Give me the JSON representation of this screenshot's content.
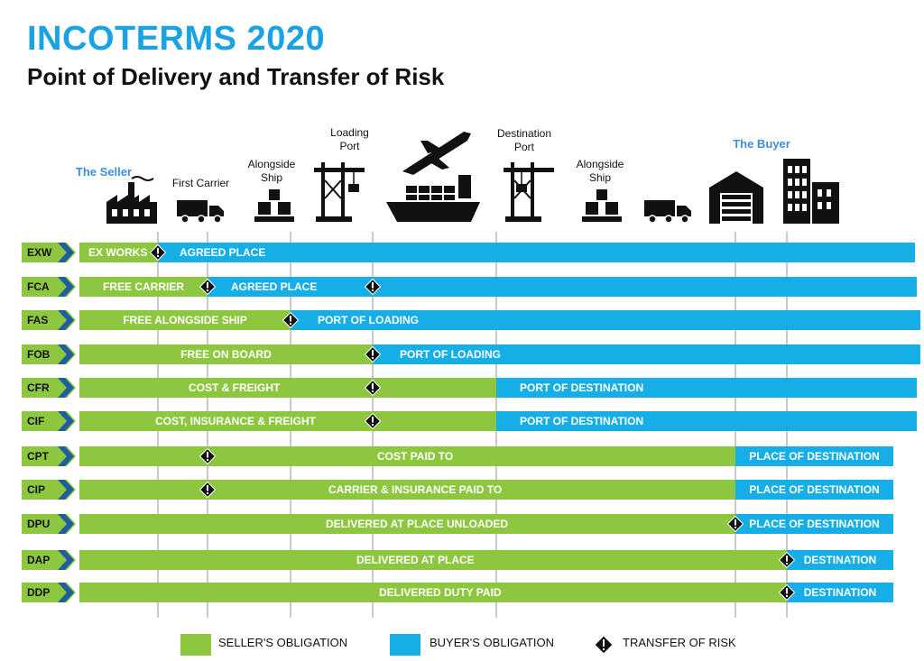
{
  "header": {
    "title": "INCOTERMS 2020",
    "subtitle": "Point of Delivery and Transfer of Risk"
  },
  "locations": [
    {
      "label": "The Seller",
      "icon": "factory-icon",
      "highlight": true
    },
    {
      "label": "First Carrier",
      "icon": "truck-icon",
      "highlight": false
    },
    {
      "label": "Alongside Ship",
      "icon": "cargo-boxes-icon",
      "highlight": false
    },
    {
      "label": "Loading Port",
      "icon": "port-crane-icon",
      "highlight": false
    },
    {
      "label": "",
      "icon": "ship-and-plane-icon",
      "highlight": false
    },
    {
      "label": "Destination Port",
      "icon": "port-crane-icon",
      "highlight": false
    },
    {
      "label": "Alongside Ship",
      "icon": "cargo-boxes-icon",
      "highlight": false
    },
    {
      "label": "",
      "icon": "truck-icon",
      "highlight": false
    },
    {
      "label": "",
      "icon": "warehouse-icon",
      "highlight": false
    },
    {
      "label": "The Buyer",
      "icon": "buildings-icon",
      "highlight": true
    }
  ],
  "terms": [
    {
      "code": "EXW",
      "seller_text": "EX WORKS",
      "buyer_text": "AGREED PLACE"
    },
    {
      "code": "FCA",
      "seller_text": "FREE CARRIER",
      "buyer_text": "AGREED PLACE"
    },
    {
      "code": "FAS",
      "seller_text": "FREE ALONGSIDE SHIP",
      "buyer_text": "PORT OF LOADING"
    },
    {
      "code": "FOB",
      "seller_text": "FREE  ON BOARD",
      "buyer_text": "PORT OF LOADING"
    },
    {
      "code": "CFR",
      "seller_text": "COST & FREIGHT",
      "buyer_text": "PORT OF DESTINATION"
    },
    {
      "code": "CIF",
      "seller_text": "COST, INSURANCE & FREIGHT",
      "buyer_text": "PORT OF DESTINATION"
    },
    {
      "code": "CPT",
      "seller_text": "COST PAID TO",
      "buyer_text": "PLACE OF DESTINATION"
    },
    {
      "code": "CIP",
      "seller_text": "CARRIER & INSURANCE PAID TO",
      "buyer_text": "PLACE OF DESTINATION"
    },
    {
      "code": "DPU",
      "seller_text": "DELIVERED AT PLACE UNLOADED",
      "buyer_text": "PLACE OF DESTINATION"
    },
    {
      "code": "DAP",
      "seller_text": "DELIVERED AT PLACE",
      "buyer_text": "DESTINATION"
    },
    {
      "code": "DDP",
      "seller_text": "DELIVERED DUTY PAID",
      "buyer_text": "DESTINATION"
    }
  ],
  "legend": {
    "seller": "SELLER'S OBLIGATION",
    "buyer": "BUYER'S OBLIGATION",
    "risk": "TRANSFER OF RISK"
  },
  "colors": {
    "seller": "#8dc63f",
    "buyer": "#16aee6",
    "title": "#1aa3e2",
    "highlight_label": "#3e8fd8"
  }
}
